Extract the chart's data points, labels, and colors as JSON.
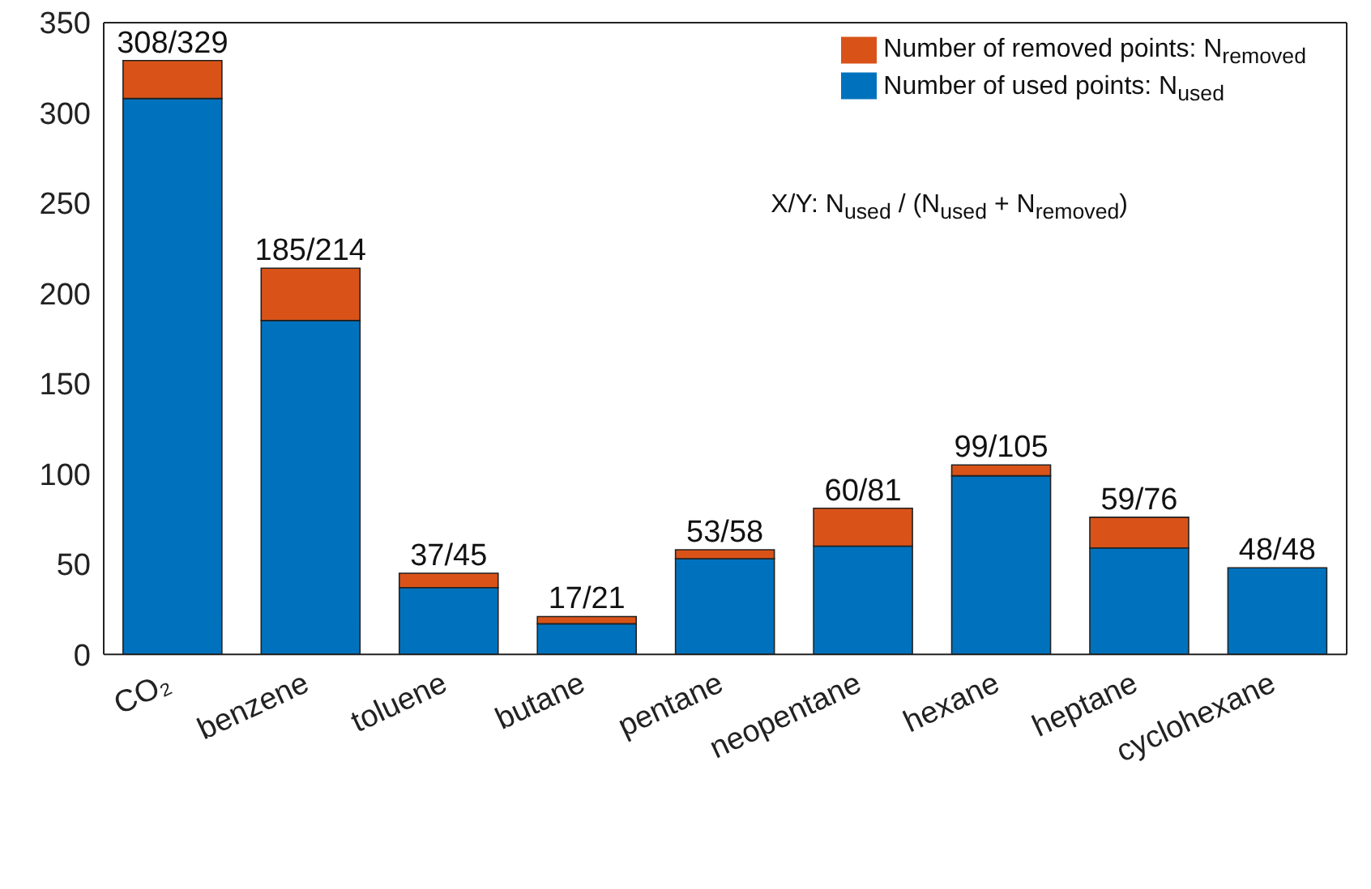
{
  "chart_data": {
    "type": "bar",
    "stacked": true,
    "categories": [
      "CO₂",
      "benzene",
      "toluene",
      "butane",
      "pentane",
      "neopentane",
      "hexane",
      "heptane",
      "cyclohexane"
    ],
    "series": [
      {
        "name": "Number of used points: N$_{used}$",
        "color": "#0072bd",
        "values": [
          308,
          185,
          37,
          17,
          53,
          60,
          99,
          59,
          48
        ]
      },
      {
        "name": "Number of removed points: N$_{removed}$",
        "color": "#d95319",
        "values": [
          21,
          29,
          8,
          4,
          5,
          21,
          6,
          17,
          0
        ]
      }
    ],
    "totals": [
      "308/329",
      "185/214",
      "37/45",
      "17/21",
      "53/58",
      "60/81",
      "99/105",
      "59/76",
      "48/48"
    ],
    "ylim": [
      0,
      350
    ],
    "yticks": [
      0,
      50,
      100,
      150,
      200,
      250,
      300,
      350
    ],
    "grid": false,
    "legend": "top right",
    "annotations": [
      "X/Y: N$_{used}$ / (N$_{used}$ + N$_{removed}$)"
    ]
  }
}
